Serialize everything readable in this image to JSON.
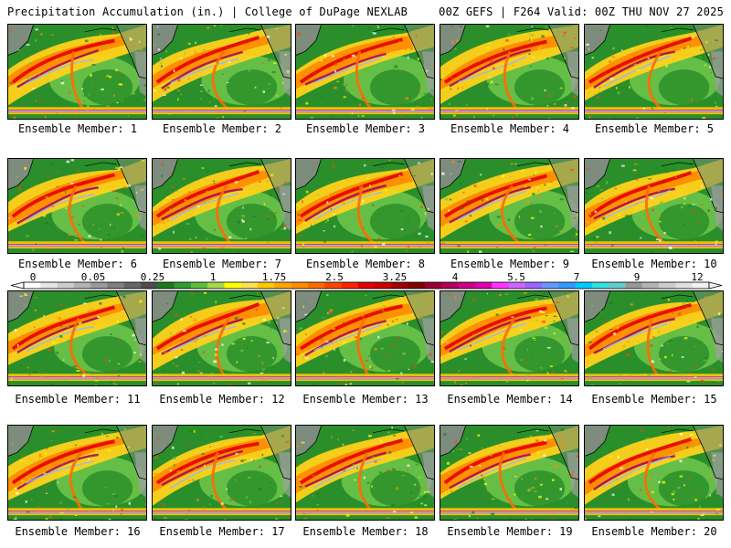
{
  "header": {
    "left": "Precipitation Accumulation (in.) | College of DuPage NEXLAB",
    "right": "00Z GEFS | F264 Valid: 00Z THU NOV 27 2025"
  },
  "member_label_prefix": "Ensemble Member: ",
  "members": [
    1,
    2,
    3,
    4,
    5,
    6,
    7,
    8,
    9,
    10,
    11,
    12,
    13,
    14,
    15,
    16,
    17,
    18,
    19,
    20
  ],
  "colorbar": {
    "ticks": [
      "0",
      "0.05",
      "0.25",
      "1",
      "1.75",
      "2.5",
      "3.25",
      "4",
      "5.5",
      "7",
      "9",
      "12"
    ],
    "colors": [
      "#ffffff",
      "#e6e6e6",
      "#cccccc",
      "#b3b3b3",
      "#999999",
      "#7f7f7f",
      "#666666",
      "#4d4d4d",
      "#1a7a1a",
      "#2e9e2e",
      "#5cbf3a",
      "#a6d84a",
      "#ffff00",
      "#ffe14d",
      "#ffc800",
      "#ffa500",
      "#ff8c00",
      "#ff6a00",
      "#ff4500",
      "#ff2200",
      "#e60000",
      "#c80000",
      "#a00000",
      "#800000",
      "#990033",
      "#b3005c",
      "#cc0088",
      "#e000b0",
      "#ff33ff",
      "#cc66ff",
      "#9966ff",
      "#6699ff",
      "#3399ff",
      "#00ccff",
      "#33e0e0",
      "#66cccc",
      "#999999",
      "#b3b3b3",
      "#cccccc",
      "#e0e0e0",
      "#f2f2f2"
    ]
  }
}
